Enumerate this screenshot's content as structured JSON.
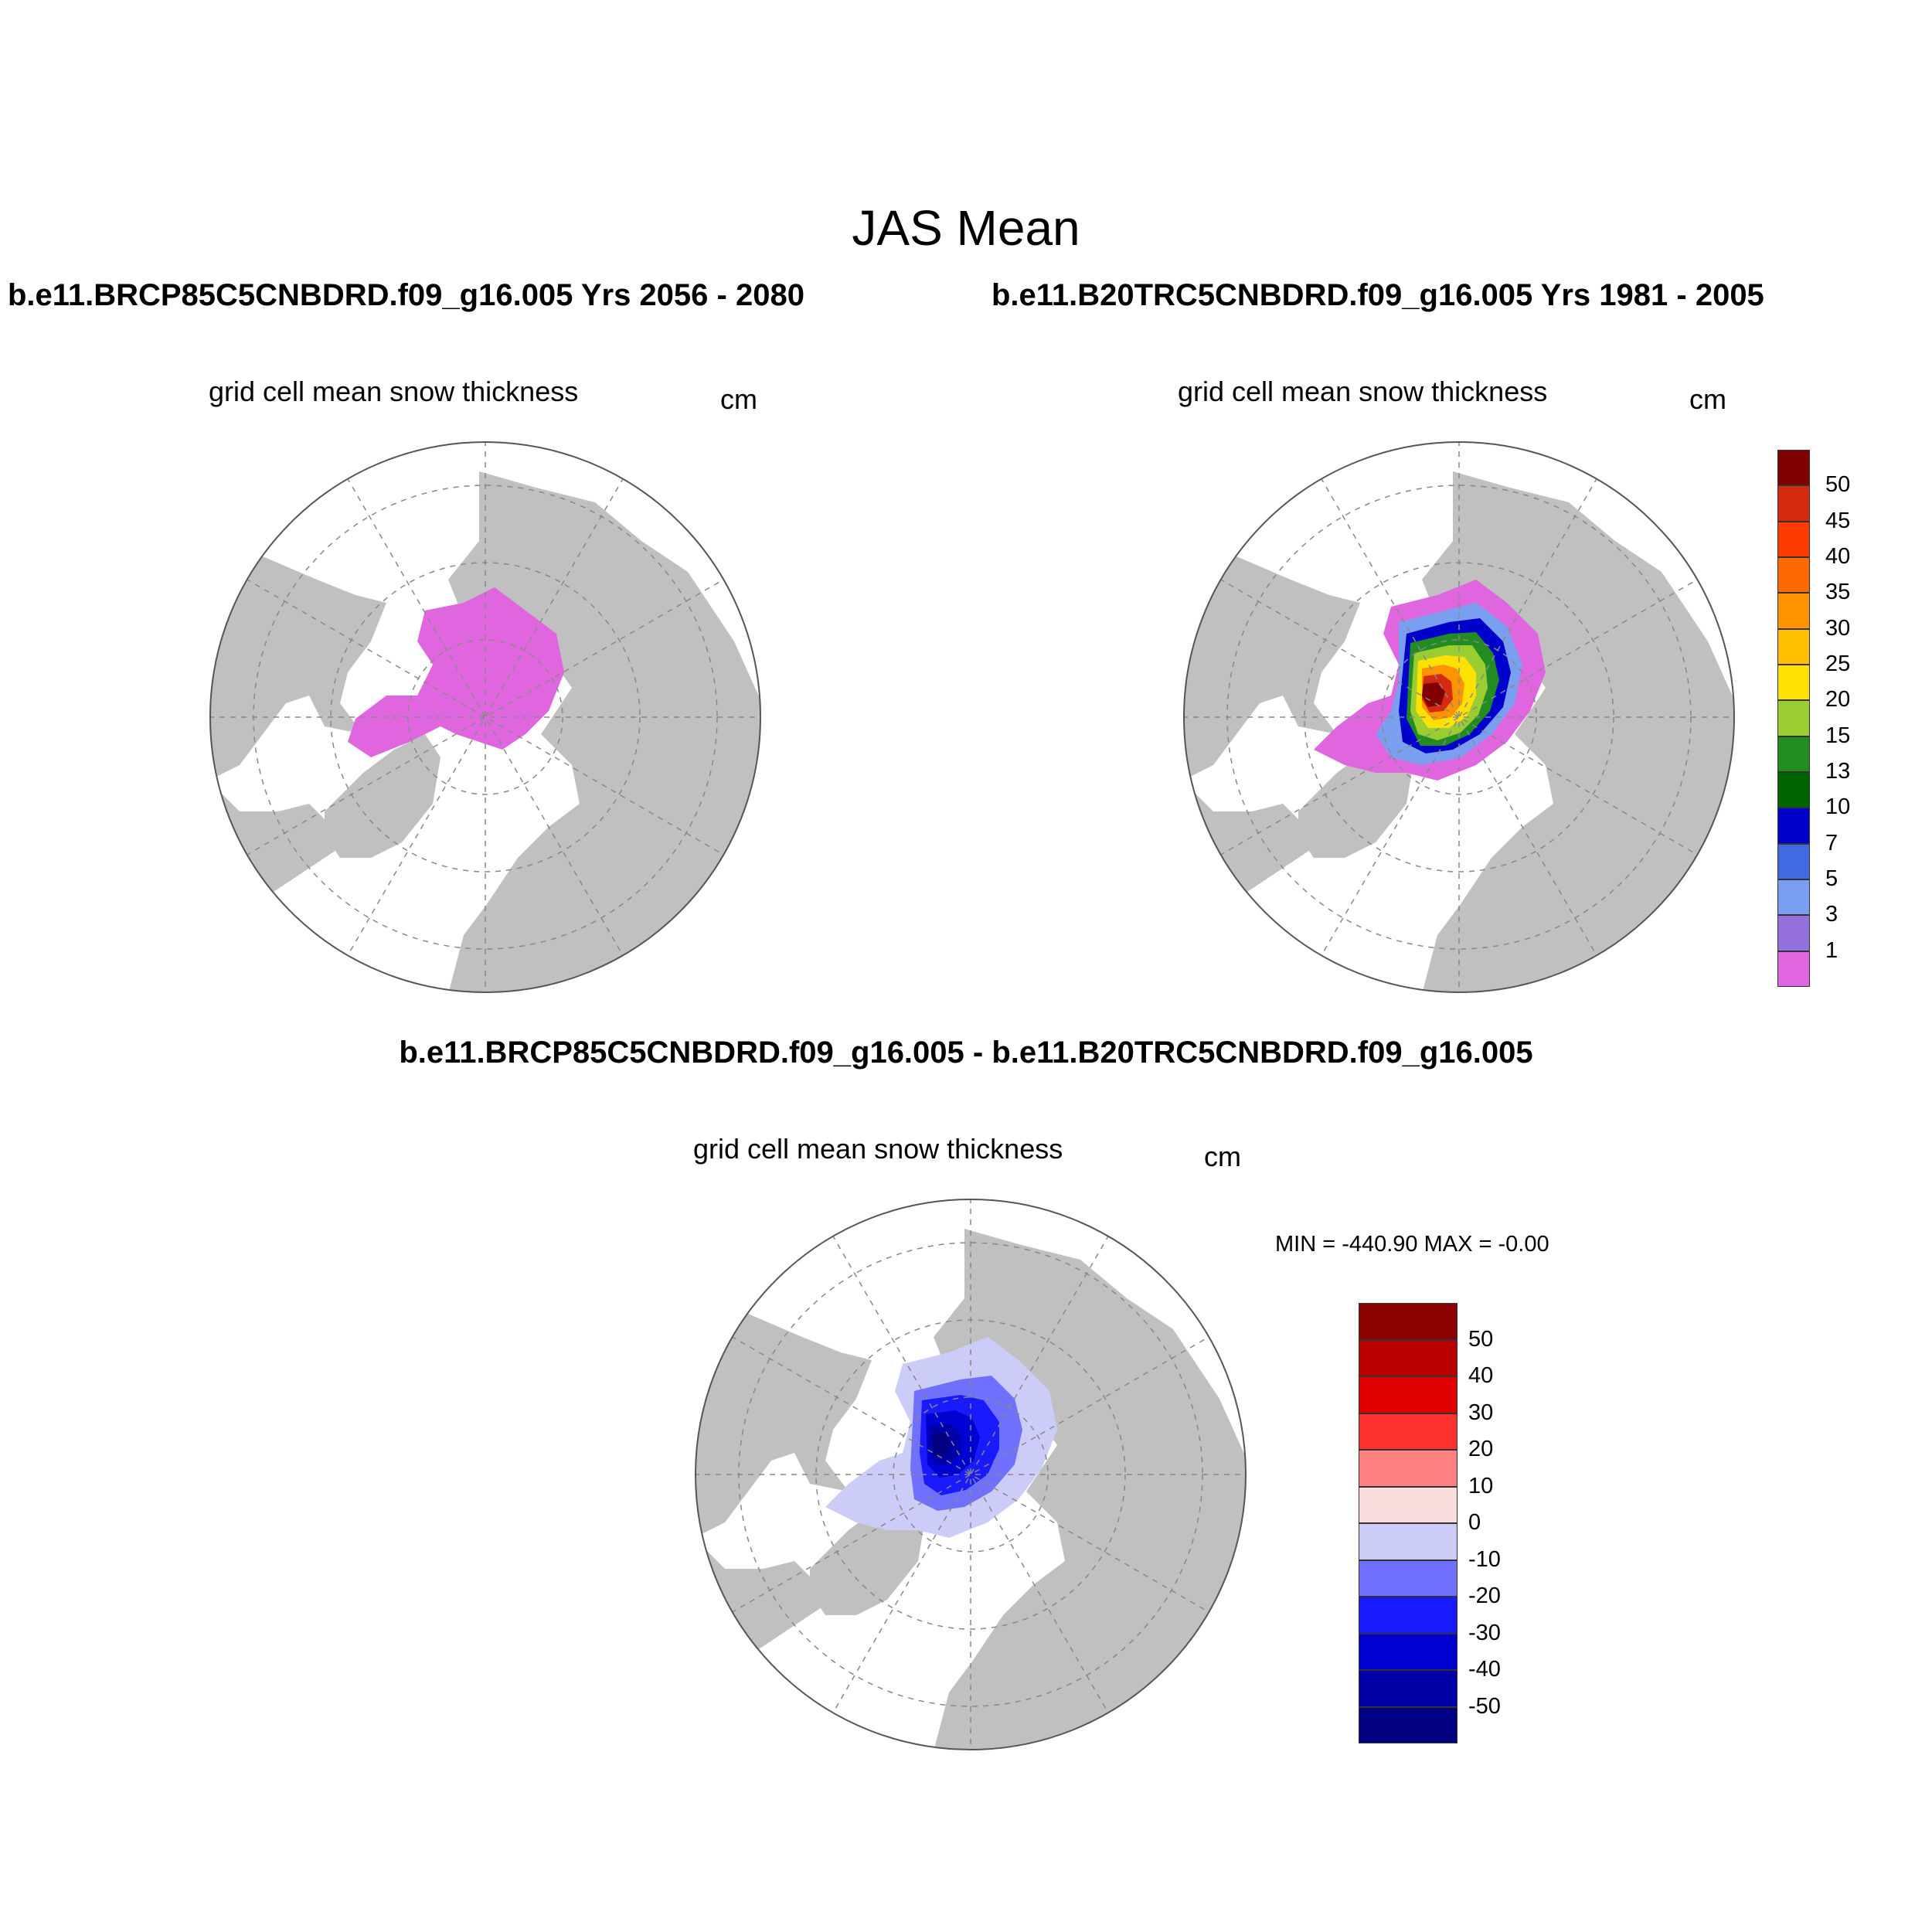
{
  "title": "JAS Mean",
  "left_panel": {
    "header": "b.e11.BRCP85C5CNBDRD.f09_g16.005  Yrs 2056 - 2080",
    "variable": "grid cell mean snow thickness",
    "units": "cm"
  },
  "right_panel": {
    "header": "b.e11.B20TRC5CNBDRD.f09_g16.005  Yrs 1981 - 2005",
    "variable": "grid cell mean snow thickness",
    "units": "cm"
  },
  "diff_panel": {
    "header": "b.e11.BRCP85C5CNBDRD.f09_g16.005 - b.e11.B20TRC5CNBDRD.f09_g16.005",
    "variable": "grid cell mean snow thickness",
    "units": "cm",
    "minmax": "MIN = -440.90 MAX =  -0.00"
  },
  "colorbar_abs": {
    "labels": [
      "50",
      "45",
      "40",
      "35",
      "30",
      "25",
      "20",
      "15",
      "13",
      "10",
      "7",
      "5",
      "3",
      "1"
    ],
    "colors": [
      "#800000",
      "#d42a10",
      "#ff3a00",
      "#ff6a00",
      "#ff9300",
      "#ffbe00",
      "#ffe100",
      "#9acd32",
      "#228b22",
      "#006400",
      "#0000cd",
      "#4169e1",
      "#7b9ff0",
      "#9370db",
      "#e066e0"
    ]
  },
  "colorbar_diff": {
    "labels": [
      "50",
      "40",
      "30",
      "20",
      "10",
      "0",
      "-10",
      "-20",
      "-30",
      "-40",
      "-50"
    ],
    "colors": [
      "#8b0000",
      "#bb0000",
      "#e00000",
      "#ff3030",
      "#ff8080",
      "#fadede",
      "#ccccf8",
      "#7070ff",
      "#1a1aff",
      "#0000d0",
      "#0000a8",
      "#000080"
    ]
  },
  "map_colors": {
    "land": "#c0c0c0",
    "ocean": "#ffffff",
    "grid": "#888888"
  }
}
